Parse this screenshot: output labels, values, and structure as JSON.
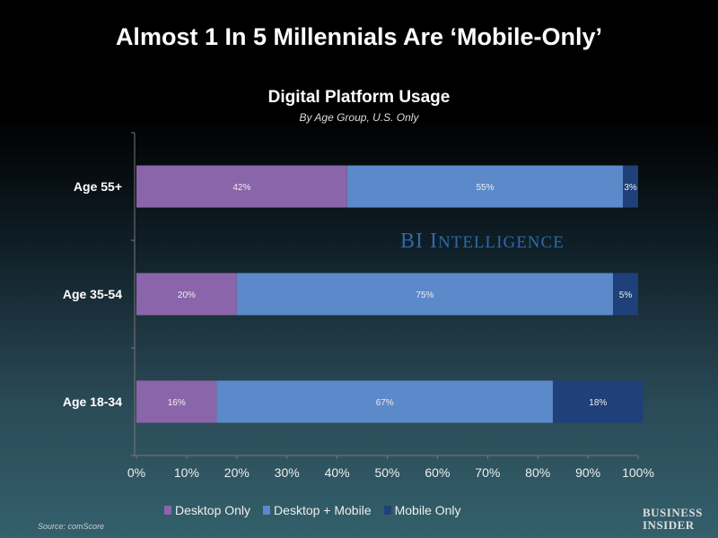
{
  "header": {
    "title": "Almost 1 In 5 Millennials Are ‘Mobile-Only’"
  },
  "watermark": {
    "main": "BI I",
    "rest": "NTELLIGENCE"
  },
  "footer": {
    "source": "Source: comScore",
    "brand_line1": "BUSINESS",
    "brand_line2": "INSIDER"
  },
  "chart_data": {
    "type": "bar",
    "orientation": "horizontal",
    "stacked": true,
    "title": "Digital Platform Usage",
    "subtitle": "By Age Group, U.S. Only",
    "categories": [
      "Age 55+",
      "Age 35-54",
      "Age 18-34"
    ],
    "series": [
      {
        "name": "Desktop Only",
        "color": "#8b65a9",
        "values": [
          42,
          20,
          16
        ]
      },
      {
        "name": "Desktop + Mobile",
        "color": "#5b89c9",
        "values": [
          55,
          75,
          67
        ]
      },
      {
        "name": "Mobile Only",
        "color": "#1f4079",
        "values": [
          3,
          5,
          18
        ]
      }
    ],
    "xlim": [
      0,
      100
    ],
    "xticks": [
      "0%",
      "10%",
      "20%",
      "30%",
      "40%",
      "50%",
      "60%",
      "70%",
      "80%",
      "90%",
      "100%"
    ],
    "grid": false,
    "legend": "bottom"
  }
}
